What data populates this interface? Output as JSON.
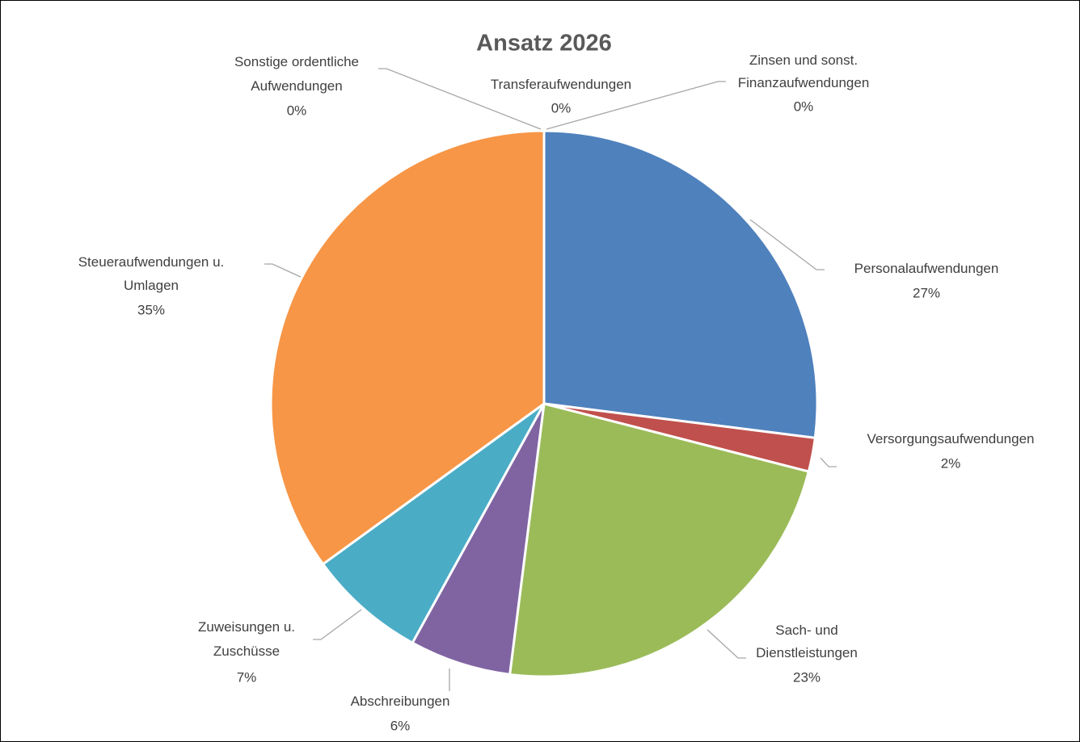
{
  "chart_data": {
    "type": "pie",
    "title": "Ansatz 2026",
    "categories": [
      "Personalaufwendungen",
      "Versorgungsaufwendungen",
      "Sach- und Dienstleistungen",
      "Abschreibungen",
      "Zuweisungen u. Zuschüsse",
      "Steueraufwendungen u. Umlagen",
      "Sonstige ordentliche Aufwendungen",
      "Transferaufwendungen",
      "Zinsen und sonst. Finanzaufwendungen"
    ],
    "values": [
      27,
      2,
      23,
      6,
      7,
      35,
      0,
      0,
      0
    ],
    "value_labels": [
      "27%",
      "2%",
      "23%",
      "6%",
      "7%",
      "35%",
      "0%",
      "0%",
      "0%"
    ],
    "colors": [
      "#4f81bd",
      "#c0504d",
      "#9bbb59",
      "#8064a2",
      "#4bacc6",
      "#f79646",
      "#2c4d75",
      "#772c2a",
      "#5f7530"
    ]
  }
}
